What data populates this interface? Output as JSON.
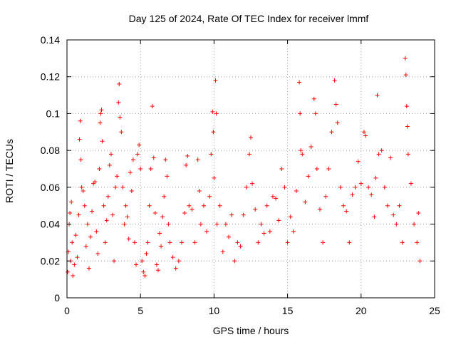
{
  "chart_data": {
    "type": "scatter",
    "title": "Day 125 of 2024, Rate Of TEC Index for receiver lmmf",
    "xlabel": "GPS time / hours",
    "ylabel": "ROTI / TECUs",
    "xlim": [
      0,
      25
    ],
    "ylim": [
      0,
      0.14
    ],
    "xticks": [
      0,
      5,
      10,
      15,
      20,
      25
    ],
    "xtick_labels": [
      "0",
      "5",
      "10",
      "15",
      "20",
      "25"
    ],
    "yticks": [
      0,
      0.02,
      0.04,
      0.06,
      0.08,
      0.1,
      0.12,
      0.14
    ],
    "ytick_labels": [
      "0",
      "0.02",
      "0.04",
      "0.06",
      "0.08",
      "0.1",
      "0.12",
      "0.14"
    ],
    "grid": true,
    "marker": "+",
    "color": "#ff0000",
    "series": [
      {
        "name": "ROTI",
        "points": [
          [
            0.05,
            0.014
          ],
          [
            0.1,
            0.025
          ],
          [
            0.15,
            0.04
          ],
          [
            0.2,
            0.046
          ],
          [
            0.25,
            0.02
          ],
          [
            0.3,
            0.052
          ],
          [
            0.35,
            0.03
          ],
          [
            0.4,
            0.012
          ],
          [
            0.5,
            0.018
          ],
          [
            0.6,
            0.034
          ],
          [
            0.7,
            0.022
          ],
          [
            0.8,
            0.045
          ],
          [
            0.85,
            0.086
          ],
          [
            0.9,
            0.096
          ],
          [
            0.95,
            0.075
          ],
          [
            1.0,
            0.06
          ],
          [
            1.1,
            0.058
          ],
          [
            1.2,
            0.05
          ],
          [
            1.3,
            0.028
          ],
          [
            1.4,
            0.04
          ],
          [
            1.5,
            0.016
          ],
          [
            1.6,
            0.033
          ],
          [
            1.7,
            0.047
          ],
          [
            1.8,
            0.062
          ],
          [
            1.9,
            0.063
          ],
          [
            2.0,
            0.036
          ],
          [
            2.1,
            0.024
          ],
          [
            2.2,
            0.07
          ],
          [
            2.25,
            0.095
          ],
          [
            2.3,
            0.1
          ],
          [
            2.35,
            0.102
          ],
          [
            2.4,
            0.085
          ],
          [
            2.5,
            0.05
          ],
          [
            2.6,
            0.03
          ],
          [
            2.7,
            0.042
          ],
          [
            2.8,
            0.055
          ],
          [
            2.9,
            0.072
          ],
          [
            3.0,
            0.078
          ],
          [
            3.1,
            0.045
          ],
          [
            3.2,
            0.02
          ],
          [
            3.3,
            0.06
          ],
          [
            3.4,
            0.066
          ],
          [
            3.5,
            0.106
          ],
          [
            3.55,
            0.116
          ],
          [
            3.6,
            0.098
          ],
          [
            3.7,
            0.09
          ],
          [
            3.8,
            0.06
          ],
          [
            3.9,
            0.04
          ],
          [
            4.0,
            0.05
          ],
          [
            4.1,
            0.044
          ],
          [
            4.2,
            0.032
          ],
          [
            4.3,
            0.068
          ],
          [
            4.4,
            0.058
          ],
          [
            4.5,
            0.075
          ],
          [
            4.6,
            0.03
          ],
          [
            4.7,
            0.018
          ],
          [
            4.8,
            0.078
          ],
          [
            4.9,
            0.083
          ],
          [
            5.0,
            0.07
          ],
          [
            5.1,
            0.02
          ],
          [
            5.2,
            0.014
          ],
          [
            5.3,
            0.012
          ],
          [
            5.4,
            0.024
          ],
          [
            5.5,
            0.03
          ],
          [
            5.6,
            0.05
          ],
          [
            5.7,
            0.07
          ],
          [
            5.8,
            0.104
          ],
          [
            5.9,
            0.076
          ],
          [
            6.0,
            0.046
          ],
          [
            6.1,
            0.018
          ],
          [
            6.2,
            0.015
          ],
          [
            6.3,
            0.035
          ],
          [
            6.4,
            0.028
          ],
          [
            6.5,
            0.044
          ],
          [
            6.6,
            0.055
          ],
          [
            6.7,
            0.075
          ],
          [
            6.8,
            0.066
          ],
          [
            6.9,
            0.04
          ],
          [
            7.0,
            0.03
          ],
          [
            7.2,
            0.022
          ],
          [
            7.4,
            0.016
          ],
          [
            7.6,
            0.02
          ],
          [
            7.8,
            0.03
          ],
          [
            8.0,
            0.046
          ],
          [
            8.1,
            0.072
          ],
          [
            8.2,
            0.077
          ],
          [
            8.3,
            0.05
          ],
          [
            8.5,
            0.048
          ],
          [
            8.7,
            0.03
          ],
          [
            8.9,
            0.075
          ],
          [
            9.0,
            0.058
          ],
          [
            9.1,
            0.04
          ],
          [
            9.3,
            0.05
          ],
          [
            9.5,
            0.036
          ],
          [
            9.7,
            0.055
          ],
          [
            9.8,
            0.078
          ],
          [
            9.9,
            0.101
          ],
          [
            9.95,
            0.09
          ],
          [
            10.0,
            0.065
          ],
          [
            10.1,
            0.118
          ],
          [
            10.15,
            0.1
          ],
          [
            10.2,
            0.04
          ],
          [
            10.4,
            0.05
          ],
          [
            10.6,
            0.025
          ],
          [
            10.8,
            0.04
          ],
          [
            11.0,
            0.033
          ],
          [
            11.2,
            0.045
          ],
          [
            11.4,
            0.02
          ],
          [
            11.6,
            0.03
          ],
          [
            11.8,
            0.028
          ],
          [
            12.0,
            0.045
          ],
          [
            12.2,
            0.06
          ],
          [
            12.4,
            0.078
          ],
          [
            12.5,
            0.087
          ],
          [
            12.6,
            0.062
          ],
          [
            12.8,
            0.048
          ],
          [
            13.0,
            0.03
          ],
          [
            13.2,
            0.04
          ],
          [
            13.4,
            0.035
          ],
          [
            13.6,
            0.05
          ],
          [
            13.8,
            0.036
          ],
          [
            14.0,
            0.055
          ],
          [
            14.2,
            0.054
          ],
          [
            14.4,
            0.042
          ],
          [
            14.6,
            0.07
          ],
          [
            14.8,
            0.06
          ],
          [
            15.0,
            0.03
          ],
          [
            15.2,
            0.044
          ],
          [
            15.4,
            0.036
          ],
          [
            15.6,
            0.058
          ],
          [
            15.8,
            0.117
          ],
          [
            15.85,
            0.1
          ],
          [
            15.9,
            0.08
          ],
          [
            16.0,
            0.078
          ],
          [
            16.2,
            0.052
          ],
          [
            16.4,
            0.066
          ],
          [
            16.6,
            0.082
          ],
          [
            16.8,
            0.108
          ],
          [
            16.9,
            0.1
          ],
          [
            17.0,
            0.07
          ],
          [
            17.2,
            0.048
          ],
          [
            17.4,
            0.03
          ],
          [
            17.6,
            0.055
          ],
          [
            17.8,
            0.07
          ],
          [
            18.0,
            0.09
          ],
          [
            18.2,
            0.118
          ],
          [
            18.3,
            0.105
          ],
          [
            18.4,
            0.095
          ],
          [
            18.6,
            0.06
          ],
          [
            18.8,
            0.05
          ],
          [
            19.0,
            0.047
          ],
          [
            19.2,
            0.03
          ],
          [
            19.4,
            0.056
          ],
          [
            19.6,
            0.06
          ],
          [
            19.8,
            0.074
          ],
          [
            20.0,
            0.062
          ],
          [
            20.2,
            0.09
          ],
          [
            20.3,
            0.088
          ],
          [
            20.5,
            0.06
          ],
          [
            20.7,
            0.056
          ],
          [
            20.9,
            0.044
          ],
          [
            21.0,
            0.065
          ],
          [
            21.1,
            0.11
          ],
          [
            21.2,
            0.078
          ],
          [
            21.4,
            0.08
          ],
          [
            21.6,
            0.06
          ],
          [
            21.8,
            0.05
          ],
          [
            22.0,
            0.076
          ],
          [
            22.2,
            0.045
          ],
          [
            22.4,
            0.04
          ],
          [
            22.6,
            0.05
          ],
          [
            22.8,
            0.03
          ],
          [
            23.0,
            0.13
          ],
          [
            23.05,
            0.121
          ],
          [
            23.1,
            0.104
          ],
          [
            23.15,
            0.093
          ],
          [
            23.2,
            0.078
          ],
          [
            23.4,
            0.062
          ],
          [
            23.6,
            0.04
          ],
          [
            23.8,
            0.03
          ],
          [
            23.9,
            0.046
          ],
          [
            24.0,
            0.02
          ]
        ]
      }
    ]
  }
}
